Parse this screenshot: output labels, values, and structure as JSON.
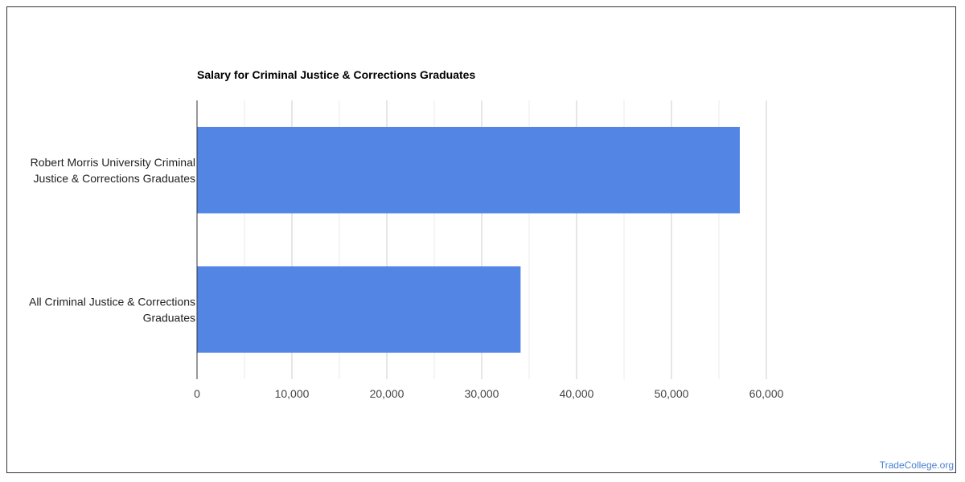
{
  "chart_data": {
    "type": "bar",
    "orientation": "horizontal",
    "title": "Salary for Criminal Justice & Corrections Graduates",
    "categories": [
      [
        "Robert Morris University Criminal",
        "Justice & Corrections Graduates"
      ],
      [
        "All Criminal Justice & Corrections",
        "Graduates"
      ]
    ],
    "values": [
      57200,
      34100
    ],
    "xlim": [
      0,
      60000
    ],
    "xticks": [
      0,
      10000,
      20000,
      30000,
      40000,
      50000,
      60000
    ],
    "xtick_labels": [
      "0",
      "10,000",
      "20,000",
      "30,000",
      "40,000",
      "50,000",
      "60,000"
    ],
    "xlabel": "",
    "ylabel": "",
    "grid": true,
    "legend": "none",
    "bar_color": "#5386e4"
  },
  "watermark": "TradeCollege.org"
}
